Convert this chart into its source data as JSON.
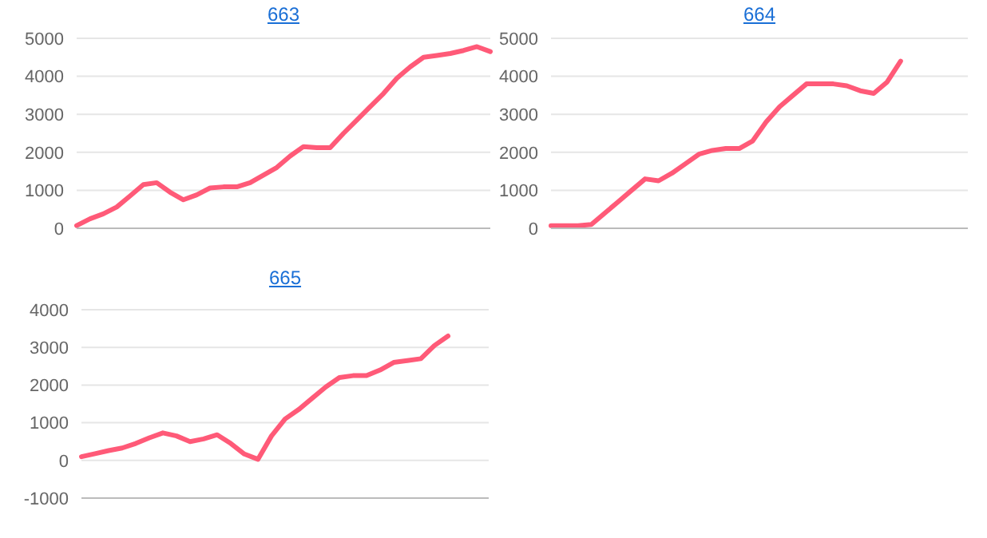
{
  "chart_data": [
    {
      "type": "line",
      "title": "663",
      "categories": [
        null,
        null,
        null,
        null,
        null,
        null,
        null,
        null,
        null,
        null,
        null,
        null,
        null,
        null,
        null,
        null,
        null,
        null,
        null,
        null,
        null,
        null,
        null,
        null,
        null,
        null,
        null,
        null,
        null,
        null,
        null,
        null
      ],
      "series": [
        {
          "color": "#ff5a78",
          "values": [
            70,
            250,
            380,
            560,
            850,
            1150,
            1200,
            950,
            750,
            880,
            1060,
            1090,
            1090,
            1200,
            1400,
            1600,
            1900,
            2150,
            2120,
            2120,
            2500,
            2850,
            3200,
            3550,
            3950,
            4250,
            4500,
            4550,
            4600,
            4680,
            4780,
            4650
          ]
        }
      ],
      "ylim": [
        0,
        5000
      ],
      "yticks": [
        0,
        1000,
        2000,
        3000,
        4000,
        5000
      ],
      "grid": "y",
      "marker": "none",
      "line_style": "solid"
    },
    {
      "type": "line",
      "title": "664",
      "categories": [
        null,
        null,
        null,
        null,
        null,
        null,
        null,
        null,
        null,
        null,
        null,
        null,
        null,
        null,
        null,
        null,
        null,
        null,
        null,
        null,
        null,
        null,
        null,
        null,
        null,
        null,
        null,
        null,
        null,
        null,
        null,
        null
      ],
      "series": [
        {
          "color": "#ff5a78",
          "values": [
            70,
            70,
            70,
            100,
            400,
            700,
            1000,
            1300,
            1250,
            1450,
            1700,
            1950,
            2050,
            2100,
            2100,
            2300,
            2800,
            3200,
            3500,
            3800,
            3800,
            3800,
            3750,
            3620,
            3550,
            3850,
            4400,
            null,
            null,
            null,
            null,
            null
          ]
        }
      ],
      "ylim": [
        0,
        5000
      ],
      "yticks": [
        0,
        1000,
        2000,
        3000,
        4000,
        5000
      ],
      "grid": "y",
      "marker": "none",
      "line_style": "solid"
    },
    {
      "type": "line",
      "title": "665",
      "categories": [
        null,
        null,
        null,
        null,
        null,
        null,
        null,
        null,
        null,
        null,
        null,
        null,
        null,
        null,
        null,
        null,
        null,
        null,
        null,
        null,
        null,
        null,
        null,
        null,
        null,
        null,
        null,
        null,
        null,
        null,
        null
      ],
      "series": [
        {
          "color": "#ff5a78",
          "values": [
            100,
            180,
            260,
            330,
            450,
            600,
            730,
            650,
            500,
            570,
            680,
            450,
            170,
            30,
            650,
            1100,
            1350,
            1650,
            1950,
            2200,
            2250,
            2250,
            2400,
            2600,
            2650,
            2700,
            3050,
            3300,
            null,
            null,
            null
          ]
        }
      ],
      "ylim": [
        -1000,
        4000
      ],
      "yticks": [
        -1000,
        0,
        1000,
        2000,
        3000,
        4000
      ],
      "grid": "y",
      "marker": "none",
      "line_style": "solid"
    }
  ]
}
